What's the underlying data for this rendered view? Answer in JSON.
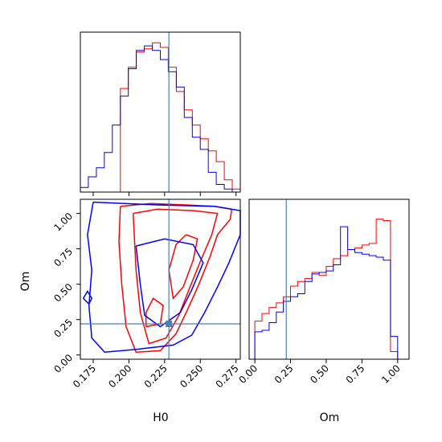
{
  "chart_data": [
    {
      "type": "histogram",
      "panel": "H0 marginal",
      "x_range": [
        0.166,
        0.278
      ],
      "truth": 0.228,
      "colors": {
        "red": "#ff0000",
        "blue": "#0000ff",
        "truth": "#4682b4"
      },
      "x_ticks": [
        "0.175",
        "0.200",
        "0.225",
        "0.250",
        "0.275"
      ],
      "x_tick_values": [
        0.175,
        0.2,
        0.225,
        0.25,
        0.275
      ],
      "bin_edges": [
        0.166,
        0.1716,
        0.1772,
        0.1828,
        0.1884,
        0.194,
        0.1996,
        0.2052,
        0.2108,
        0.2164,
        0.222,
        0.2276,
        0.2332,
        0.2388,
        0.2444,
        0.25,
        0.2556,
        0.2612,
        0.2668,
        0.2724,
        0.278
      ],
      "series": [
        {
          "color": "red",
          "values": [
            0,
            0,
            0,
            0,
            0,
            0.68,
            0.82,
            0.92,
            0.94,
            0.98,
            0.95,
            0.82,
            0.66,
            0.54,
            0.44,
            0.35,
            0.27,
            0.2,
            0.08,
            0.02
          ]
        },
        {
          "color": "blue",
          "values": [
            0.03,
            0.1,
            0.16,
            0.26,
            0.44,
            0.63,
            0.81,
            0.93,
            0.96,
            0.93,
            0.87,
            0.79,
            0.69,
            0.49,
            0.36,
            0.28,
            0.13,
            0.05,
            0.02,
            0.0
          ]
        }
      ]
    },
    {
      "type": "contour",
      "panel": "H0 vs Om",
      "x_range": [
        0.166,
        0.278
      ],
      "y_range": [
        -0.03,
        1.1
      ],
      "truth": {
        "x": 0.228,
        "y": 0.22
      },
      "xlabel": "H0",
      "ylabel": "Om",
      "x_ticks": [
        "0.175",
        "0.200",
        "0.225",
        "0.250",
        "0.275"
      ],
      "x_tick_values": [
        0.175,
        0.2,
        0.225,
        0.25,
        0.275
      ],
      "y_ticks": [
        "0.00",
        "0.25",
        "0.50",
        "0.75",
        "1.00"
      ],
      "y_tick_values": [
        0,
        0.25,
        0.5,
        0.75,
        1.0
      ],
      "series": [
        {
          "color": "red",
          "contours": [
            [
              [
                0.194,
                1.05
              ],
              [
                0.215,
                1.07
              ],
              [
                0.24,
                1.06
              ],
              [
                0.26,
                1.05
              ],
              [
                0.272,
                1.03
              ],
              [
                0.271,
                0.96
              ],
              [
                0.262,
                0.85
              ],
              [
                0.257,
                0.7
              ],
              [
                0.249,
                0.5
              ],
              [
                0.241,
                0.32
              ],
              [
                0.233,
                0.15
              ],
              [
                0.222,
                0.03
              ],
              [
                0.205,
                0.02
              ],
              [
                0.198,
                0.2
              ],
              [
                0.195,
                0.5
              ],
              [
                0.193,
                0.8
              ],
              [
                0.194,
                1.05
              ]
            ],
            [
              [
                0.203,
                1.0
              ],
              [
                0.22,
                1.03
              ],
              [
                0.245,
                1.02
              ],
              [
                0.262,
                1.0
              ],
              [
                0.258,
                0.85
              ],
              [
                0.25,
                0.66
              ],
              [
                0.242,
                0.46
              ],
              [
                0.235,
                0.28
              ],
              [
                0.226,
                0.12
              ],
              [
                0.214,
                0.08
              ],
              [
                0.208,
                0.3
              ],
              [
                0.205,
                0.6
              ],
              [
                0.203,
                1.0
              ]
            ],
            [
              [
                0.24,
                0.85
              ],
              [
                0.248,
                0.82
              ],
              [
                0.245,
                0.67
              ],
              [
                0.238,
                0.48
              ],
              [
                0.231,
                0.4
              ],
              [
                0.228,
                0.6
              ],
              [
                0.233,
                0.78
              ],
              [
                0.24,
                0.85
              ]
            ],
            [
              [
                0.212,
                0.2
              ],
              [
                0.222,
                0.22
              ],
              [
                0.224,
                0.35
              ],
              [
                0.217,
                0.4
              ],
              [
                0.212,
                0.3
              ],
              [
                0.212,
                0.2
              ]
            ]
          ]
        },
        {
          "color": "blue",
          "contours": [
            [
              [
                0.175,
                1.08
              ],
              [
                0.22,
                1.06
              ],
              [
                0.26,
                1.05
              ],
              [
                0.278,
                1.02
              ],
              [
                0.278,
                0.85
              ],
              [
                0.27,
                0.65
              ],
              [
                0.262,
                0.48
              ],
              [
                0.253,
                0.3
              ],
              [
                0.244,
                0.14
              ],
              [
                0.231,
                0.07
              ],
              [
                0.205,
                0.04
              ],
              [
                0.183,
                0.02
              ],
              [
                0.174,
                0.12
              ],
              [
                0.172,
                0.35
              ],
              [
                0.174,
                0.6
              ],
              [
                0.171,
                0.85
              ],
              [
                0.175,
                1.08
              ]
            ],
            [
              [
                0.205,
                0.77
              ],
              [
                0.225,
                0.82
              ],
              [
                0.245,
                0.78
              ],
              [
                0.252,
                0.65
              ],
              [
                0.244,
                0.46
              ],
              [
                0.236,
                0.3
              ],
              [
                0.222,
                0.2
              ],
              [
                0.211,
                0.28
              ],
              [
                0.208,
                0.5
              ],
              [
                0.205,
                0.77
              ]
            ],
            [
              [
                0.168,
                0.4
              ],
              [
                0.172,
                0.36
              ],
              [
                0.174,
                0.4
              ],
              [
                0.171,
                0.45
              ],
              [
                0.168,
                0.4
              ]
            ]
          ]
        }
      ]
    },
    {
      "type": "histogram",
      "panel": "Om marginal",
      "x_range": [
        -0.04,
        1.08
      ],
      "truth": 0.22,
      "xlabel": "Om",
      "x_ticks": [
        "0.00",
        "0.25",
        "0.50",
        "0.75",
        "1.00"
      ],
      "x_tick_values": [
        0,
        0.25,
        0.5,
        0.75,
        1.0
      ],
      "bin_edges": [
        0.0,
        0.05,
        0.1,
        0.15,
        0.2,
        0.25,
        0.3,
        0.35,
        0.4,
        0.45,
        0.5,
        0.55,
        0.6,
        0.65,
        0.7,
        0.75,
        0.8,
        0.85,
        0.9,
        0.95,
        1.0
      ],
      "series": [
        {
          "color": "red",
          "values": [
            0.25,
            0.3,
            0.34,
            0.37,
            0.41,
            0.48,
            0.51,
            0.53,
            0.57,
            0.55,
            0.61,
            0.66,
            0.68,
            0.72,
            0.73,
            0.75,
            0.76,
            0.92,
            0.91,
            0.05
          ]
        },
        {
          "color": "blue",
          "values": [
            0.18,
            0.19,
            0.24,
            0.31,
            0.38,
            0.41,
            0.43,
            0.51,
            0.56,
            0.57,
            0.58,
            0.62,
            0.87,
            0.72,
            0.7,
            0.69,
            0.68,
            0.67,
            0.65,
            0.15
          ]
        }
      ]
    }
  ]
}
